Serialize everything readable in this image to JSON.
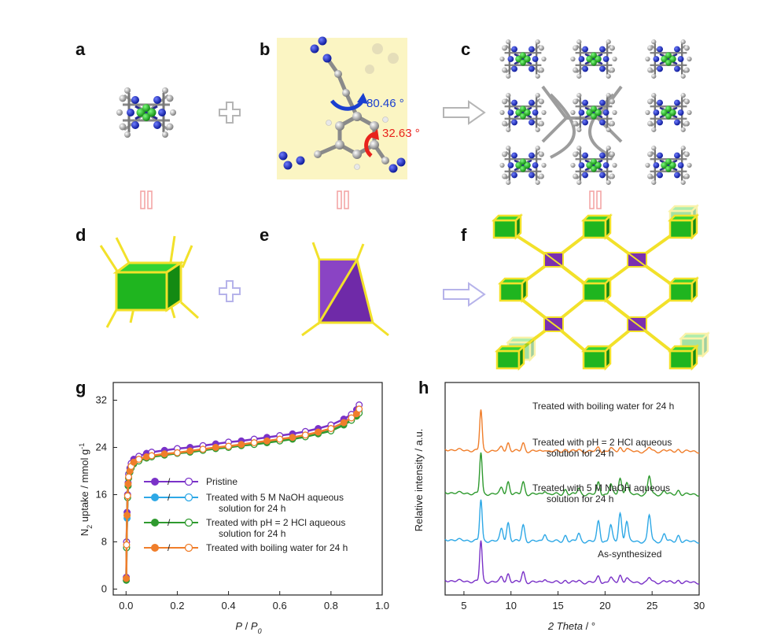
{
  "panel_labels": {
    "a": "a",
    "b": "b",
    "c": "c",
    "d": "d",
    "e": "e",
    "f": "f",
    "g": "g",
    "h": "h"
  },
  "angles": {
    "blue": "80.46 °",
    "red": "32.63 °"
  },
  "colors": {
    "purple": "#7a32c8",
    "blue": "#2ea8e6",
    "green": "#2f9a2f",
    "orange": "#f07e2b",
    "cube_green": "#1fb51f",
    "frame_yellow": "#f2e12a",
    "tet_purple": "#7a2fb0",
    "bg_yellow": "#fbf5c3"
  },
  "chart_data": [
    {
      "type": "scatter",
      "panel": "g",
      "ylabel": "N2 uptake / mmol g-1",
      "ylabel_main": "N",
      "ylabel_sub": "2",
      "ylabel_rest": " uptake / mmol g",
      "ylabel_sup": "-1",
      "xlabel": "P / P0",
      "xlabel_p": "P",
      "xlabel_sep": " / ",
      "xlabel_p0": "P",
      "xlabel_p0_sub": "0",
      "xlim": [
        -0.05,
        1.0
      ],
      "ylim": [
        -1,
        35
      ],
      "xticks": [
        0.0,
        0.2,
        0.4,
        0.6,
        0.8,
        1.0
      ],
      "xtick_labels": [
        "0.0",
        "0.2",
        "0.4",
        "0.6",
        "0.8",
        "1.0"
      ],
      "yticks": [
        0,
        8,
        16,
        24,
        32
      ],
      "ytick_labels": [
        "0",
        "8",
        "16",
        "24",
        "32"
      ],
      "legend_sep": "/",
      "series": [
        {
          "name": "Pristine",
          "name_lines": [
            "Pristine"
          ],
          "color": "#7a32c8",
          "x": [
            0.001,
            0.002,
            0.004,
            0.006,
            0.008,
            0.01,
            0.015,
            0.02,
            0.03,
            0.05,
            0.08,
            0.1,
            0.15,
            0.2,
            0.25,
            0.3,
            0.35,
            0.4,
            0.45,
            0.5,
            0.55,
            0.6,
            0.65,
            0.7,
            0.75,
            0.8,
            0.85,
            0.88,
            0.9,
            0.91
          ],
          "y": [
            2,
            8,
            13,
            16,
            18,
            19.5,
            20.5,
            21.3,
            22,
            22.5,
            23,
            23.2,
            23.5,
            23.8,
            24,
            24.3,
            24.6,
            24.9,
            25.1,
            25.4,
            25.7,
            26,
            26.3,
            26.7,
            27.2,
            27.8,
            28.8,
            29.6,
            30.4,
            31.2
          ]
        },
        {
          "name": "Treated with 5 M NaOH aqueous solution for 24 h",
          "name_lines": [
            "Treated with 5 M NaOH aqueous",
            "solution for 24 h"
          ],
          "color": "#2ea8e6",
          "x": [
            0.001,
            0.002,
            0.004,
            0.006,
            0.008,
            0.01,
            0.015,
            0.02,
            0.03,
            0.05,
            0.08,
            0.1,
            0.15,
            0.2,
            0.25,
            0.3,
            0.35,
            0.4,
            0.45,
            0.5,
            0.55,
            0.6,
            0.65,
            0.7,
            0.75,
            0.8,
            0.85,
            0.88,
            0.9,
            0.91
          ],
          "y": [
            1.5,
            7,
            12,
            15.5,
            17.5,
            18.8,
            19.8,
            20.6,
            21.3,
            21.8,
            22.3,
            22.5,
            22.8,
            23,
            23.3,
            23.6,
            23.9,
            24.1,
            24.4,
            24.6,
            24.9,
            25.2,
            25.5,
            25.9,
            26.4,
            27,
            28,
            28.8,
            29.6,
            30.3
          ]
        },
        {
          "name": "Treated with pH = 2 HCl aqueous solution for 24 h",
          "name_lines": [
            "Treated with pH = 2 HCl aqueous",
            "solution for 24 h"
          ],
          "color": "#2f9a2f",
          "x": [
            0.001,
            0.002,
            0.004,
            0.006,
            0.008,
            0.01,
            0.015,
            0.02,
            0.03,
            0.05,
            0.08,
            0.1,
            0.15,
            0.2,
            0.25,
            0.3,
            0.35,
            0.4,
            0.45,
            0.5,
            0.55,
            0.6,
            0.65,
            0.7,
            0.75,
            0.8,
            0.85,
            0.88,
            0.9,
            0.91
          ],
          "y": [
            1.5,
            7,
            12.5,
            15.5,
            17.5,
            18.8,
            19.8,
            20.5,
            21.2,
            21.7,
            22.2,
            22.4,
            22.7,
            23,
            23.2,
            23.5,
            23.8,
            24,
            24.3,
            24.5,
            24.8,
            25.1,
            25.4,
            25.8,
            26.3,
            26.8,
            27.8,
            28.6,
            29.3,
            29.8
          ]
        },
        {
          "name": "Treated with boiling water for 24 h",
          "name_lines": [
            "Treated with boiling water for 24 h"
          ],
          "color": "#f07e2b",
          "x": [
            0.001,
            0.002,
            0.004,
            0.006,
            0.008,
            0.01,
            0.015,
            0.02,
            0.03,
            0.05,
            0.08,
            0.1,
            0.15,
            0.2,
            0.25,
            0.3,
            0.35,
            0.4,
            0.45,
            0.5,
            0.55,
            0.6,
            0.65,
            0.7,
            0.75,
            0.8,
            0.85,
            0.88,
            0.9,
            0.91
          ],
          "y": [
            1.8,
            7.5,
            12.5,
            15.8,
            17.8,
            19,
            20,
            20.8,
            21.5,
            22,
            22.4,
            22.6,
            22.9,
            23.1,
            23.4,
            23.7,
            24,
            24.2,
            24.5,
            24.8,
            25.1,
            25.4,
            25.7,
            26.1,
            26.6,
            27.2,
            28.2,
            29,
            29.7,
            30.5
          ]
        }
      ]
    },
    {
      "type": "line",
      "panel": "h",
      "ylabel": "Relative intensity / a.u.",
      "xlabel": "2 Theta / °",
      "xlabel_text": "2 Theta",
      "xlabel_unit": " / °",
      "xlim": [
        3,
        30
      ],
      "xticks": [
        5,
        10,
        15,
        20,
        25,
        30
      ],
      "xtick_labels": [
        "5",
        "10",
        "15",
        "20",
        "25",
        "30"
      ],
      "peak_2theta": [
        6.8,
        9.0,
        9.7,
        11.3,
        13.6,
        15.8,
        17.2,
        19.3,
        20.6,
        21.6,
        22.3,
        24.7,
        26.3,
        27.8
      ],
      "series": [
        {
          "name": "As-synthesized",
          "label_lines": [
            "As-synthesized"
          ],
          "color": "#7a32c8",
          "baseline": 0.0,
          "peak_heights": [
            1.0,
            0.12,
            0.2,
            0.25,
            0.1,
            0.05,
            0.05,
            0.15,
            0.12,
            0.18,
            0.12,
            0.12,
            0.05,
            0.05
          ]
        },
        {
          "name": "Treated with 5 M NaOH aqueous solution for 24 h",
          "label_lines": [
            "Treated with 5 M NaOH aqueous",
            "solution for 24 h"
          ],
          "color": "#2ea8e6",
          "baseline": 1.0,
          "peak_heights": [
            1.0,
            0.3,
            0.45,
            0.4,
            0.2,
            0.15,
            0.2,
            0.5,
            0.4,
            0.7,
            0.5,
            0.65,
            0.2,
            0.15
          ]
        },
        {
          "name": "Treated with pH = 2 HCl aqueous solution for 24 h",
          "label_lines": [
            "Treated with pH = 2 HCl aqueous",
            "solution for 24 h"
          ],
          "color": "#2f9a2f",
          "baseline": 2.15,
          "peak_heights": [
            1.0,
            0.15,
            0.3,
            0.3,
            0.1,
            0.12,
            0.15,
            0.3,
            0.25,
            0.4,
            0.3,
            0.45,
            0.1,
            0.1
          ]
        },
        {
          "name": "Treated with boiling water for 24 h",
          "label_lines": [
            "Treated with boiling water for 24 h"
          ],
          "color": "#f07e2b",
          "baseline": 3.2,
          "peak_heights": [
            1.0,
            0.1,
            0.2,
            0.2,
            0.05,
            0.05,
            0.05,
            0.1,
            0.08,
            0.1,
            0.08,
            0.1,
            0.05,
            0.05
          ]
        }
      ]
    }
  ]
}
